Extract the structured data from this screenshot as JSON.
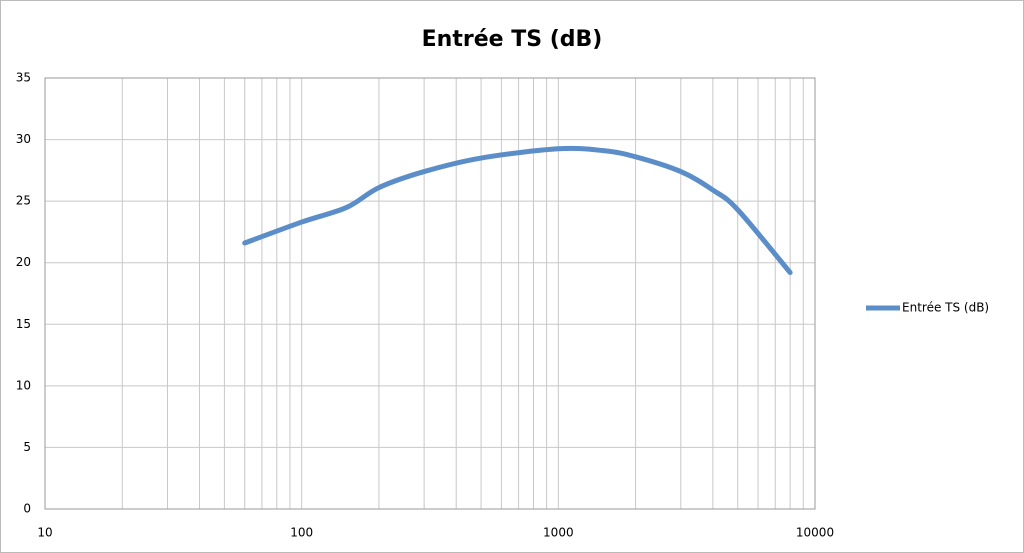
{
  "chart_data": {
    "type": "line",
    "title": "Entrée TS (dB)",
    "x": [
      60,
      100,
      150,
      200,
      300,
      500,
      1000,
      1500,
      2000,
      3000,
      4000,
      5000,
      8000
    ],
    "series": [
      {
        "name": "Entrée TS (dB)",
        "color": "#5b8ec9",
        "values": [
          21.6,
          23.3,
          24.5,
          26.1,
          27.4,
          28.5,
          29.25,
          29.1,
          28.6,
          27.4,
          25.9,
          24.3,
          19.2
        ]
      }
    ],
    "xlog": true,
    "xlim": [
      10,
      10000
    ],
    "xticks": [
      10,
      100,
      1000,
      10000
    ],
    "ylim": [
      0,
      35
    ],
    "yticks": [
      0,
      5,
      10,
      15,
      20,
      25,
      30,
      35
    ],
    "grid": true,
    "legend": "right"
  }
}
